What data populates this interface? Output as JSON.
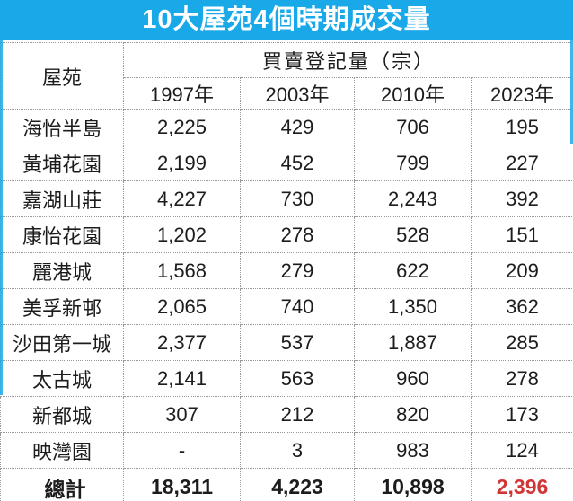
{
  "title": "10大屋苑4個時期成交量",
  "chart_data": {
    "type": "table",
    "title": "10大屋苑4個時期成交量",
    "corner_header": "屋苑",
    "group_header": "買賣登記量（宗）",
    "year_columns": [
      "1997年",
      "2003年",
      "2010年",
      "2023年"
    ],
    "rows": [
      {
        "estate": "海怡半島",
        "values": [
          "2,225",
          "429",
          "706",
          "195"
        ]
      },
      {
        "estate": "黃埔花園",
        "values": [
          "2,199",
          "452",
          "799",
          "227"
        ]
      },
      {
        "estate": "嘉湖山莊",
        "values": [
          "4,227",
          "730",
          "2,243",
          "392"
        ]
      },
      {
        "estate": "康怡花園",
        "values": [
          "1,202",
          "278",
          "528",
          "151"
        ]
      },
      {
        "estate": "麗港城",
        "values": [
          "1,568",
          "279",
          "622",
          "209"
        ]
      },
      {
        "estate": "美孚新邨",
        "values": [
          "2,065",
          "740",
          "1,350",
          "362"
        ]
      },
      {
        "estate": "沙田第一城",
        "values": [
          "2,377",
          "537",
          "1,887",
          "285"
        ]
      },
      {
        "estate": "太古城",
        "values": [
          "2,141",
          "563",
          "960",
          "278"
        ]
      },
      {
        "estate": "新都城",
        "values": [
          "307",
          "212",
          "820",
          "173"
        ]
      },
      {
        "estate": "映灣園",
        "values": [
          "-",
          "3",
          "983",
          "124"
        ]
      }
    ],
    "total": {
      "label": "總計",
      "values": [
        "18,311",
        "4,223",
        "10,898",
        "2,396"
      ]
    }
  },
  "colors": {
    "title_bg": "#1aa9e8",
    "group_header_bg": "#bed9ee",
    "band_bg": "#f0efe5",
    "grid": "#999999",
    "text": "#1c1c1c",
    "total_red": "#d03534"
  }
}
